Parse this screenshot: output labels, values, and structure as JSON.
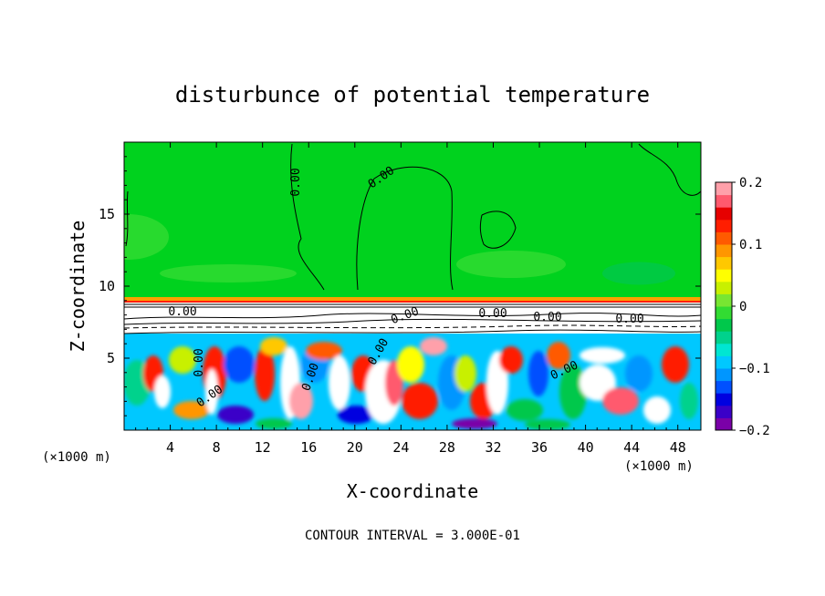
{
  "chart_data": {
    "type": "heatmap",
    "title": "disturbunce of potential temperature",
    "xlabel": "X-coordinate",
    "ylabel": "Z-coordinate",
    "x_unit": "(×1000 m)",
    "y_unit": "(×1000 m)",
    "xlim": [
      0,
      50
    ],
    "ylim": [
      0,
      20
    ],
    "x_ticks": [
      4,
      8,
      12,
      16,
      20,
      24,
      28,
      32,
      36,
      40,
      44,
      48
    ],
    "x_tick_labels": [
      "4",
      "8",
      "12",
      "16",
      "20",
      "24",
      "28",
      "32",
      "36",
      "40",
      "44",
      "48"
    ],
    "y_ticks": [
      5,
      10,
      15
    ],
    "y_tick_labels": [
      "5",
      "10",
      "15"
    ],
    "colorbar": {
      "range": [
        -0.2,
        0.2
      ],
      "ticks": [
        0.2,
        0.1,
        0,
        -0.1,
        -0.2
      ],
      "tick_labels": [
        "0.2",
        "0.1",
        "0",
        "−0.1",
        "−0.2"
      ],
      "colors": [
        "#7a00a8",
        "#3a00c8",
        "#0000e0",
        "#0050ff",
        "#0096ff",
        "#00c8ff",
        "#00e6d2",
        "#00d28c",
        "#00c84b",
        "#32dc32",
        "#78e632",
        "#c8f000",
        "#ffff00",
        "#ffc800",
        "#ff9600",
        "#ff5a00",
        "#ff1e00",
        "#e60000",
        "#ff5a6e",
        "#ffa0aa"
      ]
    },
    "contour_labels": [
      "0.00",
      "0.00",
      "0.00",
      "0.00",
      "0.00",
      "0.00",
      "0.00",
      "0.00",
      "0.00",
      "0.00",
      "0.00",
      "0.00"
    ],
    "footnote": "CONTOUR INTERVAL = 3.000E-01"
  }
}
